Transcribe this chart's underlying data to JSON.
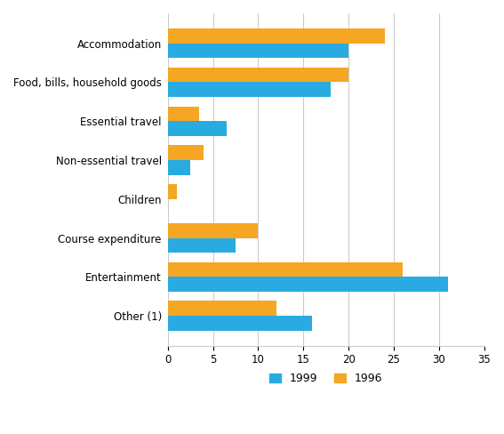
{
  "categories": [
    "Accommodation",
    "Food, bills, household goods",
    "Essential travel",
    "Non-essential travel",
    "Children",
    "Course expenditure",
    "Entertainment",
    "Other (1)"
  ],
  "values_1999": [
    20,
    18,
    6.5,
    2.5,
    0,
    7.5,
    31,
    16
  ],
  "values_1996": [
    24,
    20,
    3.5,
    4,
    1,
    10,
    26,
    12
  ],
  "color_1999": "#29ABE2",
  "color_1996": "#F5A623",
  "xlim": [
    0,
    35
  ],
  "xticks": [
    0,
    5,
    10,
    15,
    20,
    25,
    30,
    35
  ],
  "legend_labels": [
    "1999",
    "1996"
  ],
  "background_color": "#FFFFFF",
  "bar_height": 0.38,
  "grid_color": "#CCCCCC"
}
